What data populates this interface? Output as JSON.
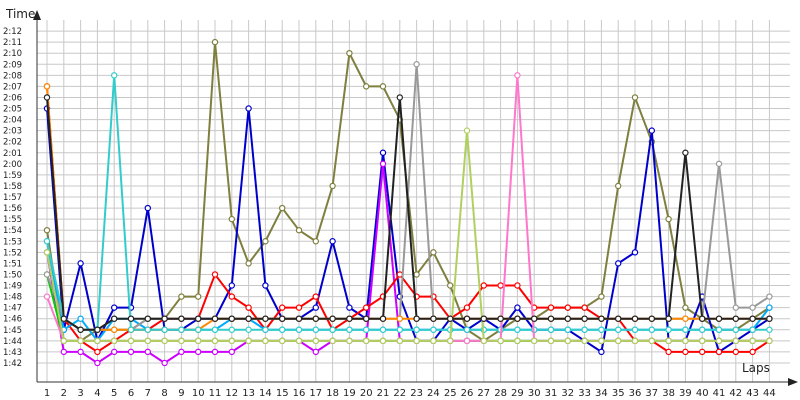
{
  "chart_data": {
    "type": "line",
    "ylabel": "Time",
    "xlabel": "Laps",
    "x": [
      1,
      2,
      3,
      4,
      5,
      6,
      7,
      8,
      9,
      10,
      11,
      12,
      13,
      14,
      15,
      16,
      17,
      18,
      19,
      20,
      21,
      22,
      23,
      24,
      25,
      26,
      27,
      28,
      29,
      30,
      31,
      32,
      33,
      34,
      35,
      36,
      37,
      38,
      39,
      40,
      41,
      42,
      43,
      44
    ],
    "ylim": [
      101,
      133
    ],
    "y_ticks": [
      "1:42",
      "1:43",
      "1:44",
      "1:45",
      "1:46",
      "1:47",
      "1:48",
      "1:49",
      "1:50",
      "1:51",
      "1:52",
      "1:53",
      "1:54",
      "1:55",
      "1:56",
      "1:57",
      "1:58",
      "1:59",
      "2:00",
      "2:01",
      "2:02",
      "2:03",
      "2:04",
      "2:05",
      "2:06",
      "2:07",
      "2:08",
      "2:09",
      "2:10",
      "2:11",
      "2:12"
    ],
    "grid": true,
    "series": [
      {
        "color": "#7f7f3f",
        "values": [
          114,
          104,
          104,
          105,
          105,
          105,
          106,
          106,
          108,
          108,
          131,
          115,
          111,
          113,
          116,
          114,
          113,
          118,
          130,
          127,
          127,
          124,
          110,
          112,
          109,
          105,
          104,
          105,
          106,
          106,
          107,
          107,
          107,
          108,
          118,
          126,
          122,
          115,
          107,
          106,
          105,
          105,
          106,
          107
        ]
      },
      {
        "color": "#0000cc",
        "values": [
          125,
          105,
          111,
          104,
          107,
          107,
          116,
          105,
          105,
          106,
          106,
          109,
          125,
          109,
          106,
          106,
          107,
          113,
          107,
          106,
          121,
          108,
          104,
          104,
          106,
          105,
          106,
          105,
          107,
          105,
          105,
          105,
          104,
          103,
          111,
          112,
          123,
          104,
          104,
          108,
          103,
          104,
          105,
          106
        ]
      },
      {
        "color": "#cc00ff",
        "values": [
          112,
          103,
          103,
          102,
          103,
          103,
          103,
          102,
          103,
          103,
          103,
          103,
          104,
          104,
          104,
          104,
          103,
          104,
          104,
          104,
          120,
          104,
          104,
          104,
          104,
          104,
          104,
          104,
          104,
          104,
          104,
          104,
          104,
          104,
          104,
          104,
          104,
          104,
          104,
          104,
          104,
          104,
          104,
          104
        ]
      },
      {
        "color": "#ff0000",
        "values": [
          127,
          106,
          104,
          103,
          104,
          105,
          105,
          106,
          106,
          106,
          110,
          108,
          107,
          105,
          107,
          107,
          108,
          105,
          106,
          107,
          108,
          110,
          108,
          108,
          106,
          107,
          109,
          109,
          109,
          107,
          107,
          107,
          107,
          106,
          106,
          104,
          104,
          103,
          103,
          103,
          103,
          103,
          103,
          104
        ]
      },
      {
        "color": "#00cc00",
        "values": [
          110,
          104,
          104,
          104,
          104,
          104,
          104,
          104,
          104,
          104,
          104,
          104,
          104,
          104,
          104,
          104,
          104,
          104,
          104,
          104,
          104,
          104,
          104,
          104,
          104,
          104,
          104,
          104,
          104,
          104,
          104,
          104,
          104,
          104,
          104,
          104,
          104,
          104,
          104,
          104,
          104,
          104,
          104,
          104
        ]
      },
      {
        "color": "#00aaff",
        "values": [
          113,
          105,
          106,
          104,
          106,
          106,
          105,
          105,
          105,
          105,
          105,
          106,
          106,
          105,
          105,
          105,
          105,
          105,
          105,
          105,
          105,
          105,
          105,
          105,
          105,
          105,
          105,
          105,
          105,
          105,
          105,
          105,
          105,
          105,
          105,
          105,
          105,
          105,
          105,
          105,
          105,
          105,
          105,
          107
        ]
      },
      {
        "color": "#999999",
        "values": [
          110,
          106,
          105,
          105,
          105,
          105,
          106,
          106,
          106,
          106,
          106,
          106,
          106,
          106,
          106,
          106,
          106,
          106,
          106,
          106,
          106,
          106,
          129,
          106,
          106,
          106,
          106,
          106,
          106,
          106,
          106,
          106,
          106,
          106,
          106,
          106,
          106,
          106,
          106,
          106,
          120,
          107,
          107,
          108
        ]
      },
      {
        "color": "#ff8800",
        "values": [
          127,
          106,
          105,
          105,
          105,
          105,
          105,
          105,
          105,
          105,
          106,
          106,
          106,
          106,
          106,
          106,
          106,
          106,
          106,
          106,
          106,
          106,
          106,
          106,
          106,
          106,
          106,
          106,
          106,
          106,
          106,
          106,
          106,
          106,
          106,
          106,
          106,
          106,
          106,
          106,
          106,
          106,
          106,
          106
        ]
      },
      {
        "color": "#33cccc",
        "values": [
          113,
          106,
          105,
          105,
          128,
          105,
          105,
          105,
          105,
          105,
          105,
          105,
          105,
          105,
          105,
          105,
          105,
          105,
          105,
          105,
          105,
          105,
          105,
          105,
          105,
          105,
          105,
          105,
          105,
          105,
          105,
          105,
          105,
          105,
          105,
          105,
          105,
          105,
          105,
          105,
          105,
          105,
          105,
          105
        ]
      },
      {
        "color": "#ff77cc",
        "values": [
          108,
          104,
          104,
          104,
          104,
          104,
          104,
          104,
          104,
          104,
          104,
          104,
          104,
          104,
          104,
          104,
          104,
          104,
          104,
          104,
          104,
          104,
          104,
          104,
          104,
          104,
          104,
          104,
          128,
          104,
          104,
          104,
          104,
          104,
          104,
          104,
          104,
          104,
          104,
          104,
          104,
          104,
          104,
          104
        ]
      },
      {
        "color": "#b0d060",
        "values": [
          112,
          104,
          104,
          104,
          104,
          104,
          104,
          104,
          104,
          104,
          104,
          104,
          104,
          104,
          104,
          104,
          104,
          104,
          104,
          104,
          104,
          104,
          104,
          104,
          104,
          123,
          104,
          104,
          104,
          104,
          104,
          104,
          104,
          104,
          104,
          104,
          104,
          104,
          104,
          104,
          104,
          104,
          104,
          104
        ]
      },
      {
        "color": "#222222",
        "values": [
          126,
          106,
          105,
          105,
          106,
          106,
          106,
          106,
          106,
          106,
          106,
          106,
          106,
          106,
          106,
          106,
          106,
          106,
          106,
          106,
          106,
          126,
          106,
          106,
          106,
          106,
          106,
          106,
          106,
          106,
          106,
          106,
          106,
          106,
          106,
          106,
          106,
          106,
          121,
          106,
          106,
          106,
          106,
          106
        ]
      }
    ]
  }
}
